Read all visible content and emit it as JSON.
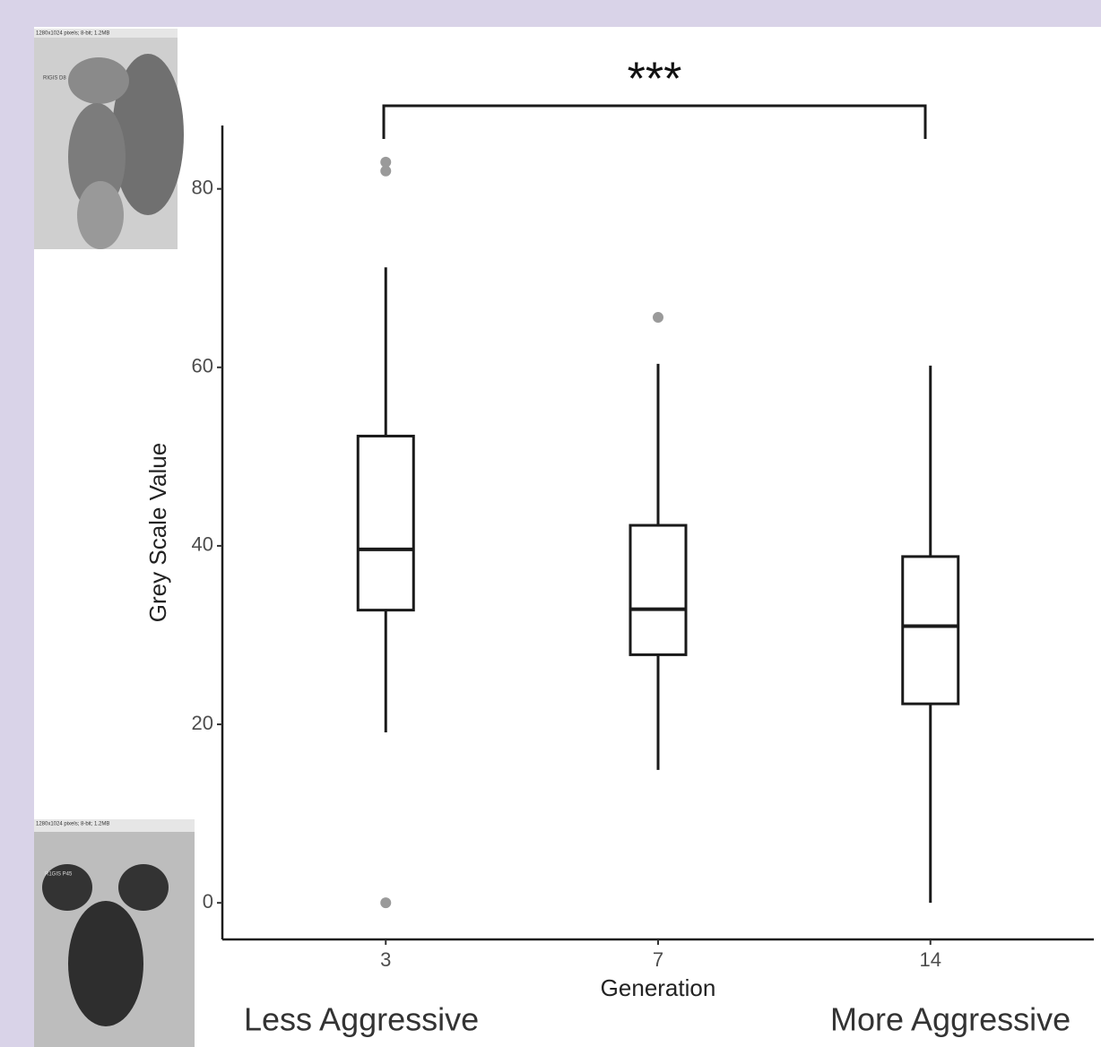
{
  "chart_data": {
    "type": "box",
    "annotation": "***",
    "y_label": "Grey Scale Value",
    "x_label": "Generation",
    "left_caption": "Less Aggressive",
    "right_caption": "More Aggressive",
    "categories": [
      "3",
      "7",
      "14"
    ],
    "boxes": [
      {
        "low": 19.1,
        "q1": 32.8,
        "median": 39.6,
        "q3": 52.3,
        "high": 71.2,
        "outliers": [
          83.0,
          82.0,
          0
        ]
      },
      {
        "low": 14.9,
        "q1": 27.8,
        "median": 32.9,
        "q3": 42.3,
        "high": 60.4,
        "outliers": [
          65.6
        ]
      },
      {
        "low": 0,
        "q1": 22.3,
        "median": 31.0,
        "q3": 38.8,
        "high": 60.2,
        "outliers": []
      }
    ],
    "color": "#1a1a1a",
    "outlier_color": "#9a9a9a",
    "ylim": [
      -4.1,
      87.1
    ],
    "yticks": [
      0,
      20,
      40,
      60,
      80
    ],
    "images": [
      {
        "header": "1280x1024 pixels; 8-bit; 1.2MB",
        "label": "RIGIS D8"
      },
      {
        "header": "1280x1024 pixels; 8-bit; 1.2MB",
        "label": "R1GIS P45"
      }
    ]
  }
}
